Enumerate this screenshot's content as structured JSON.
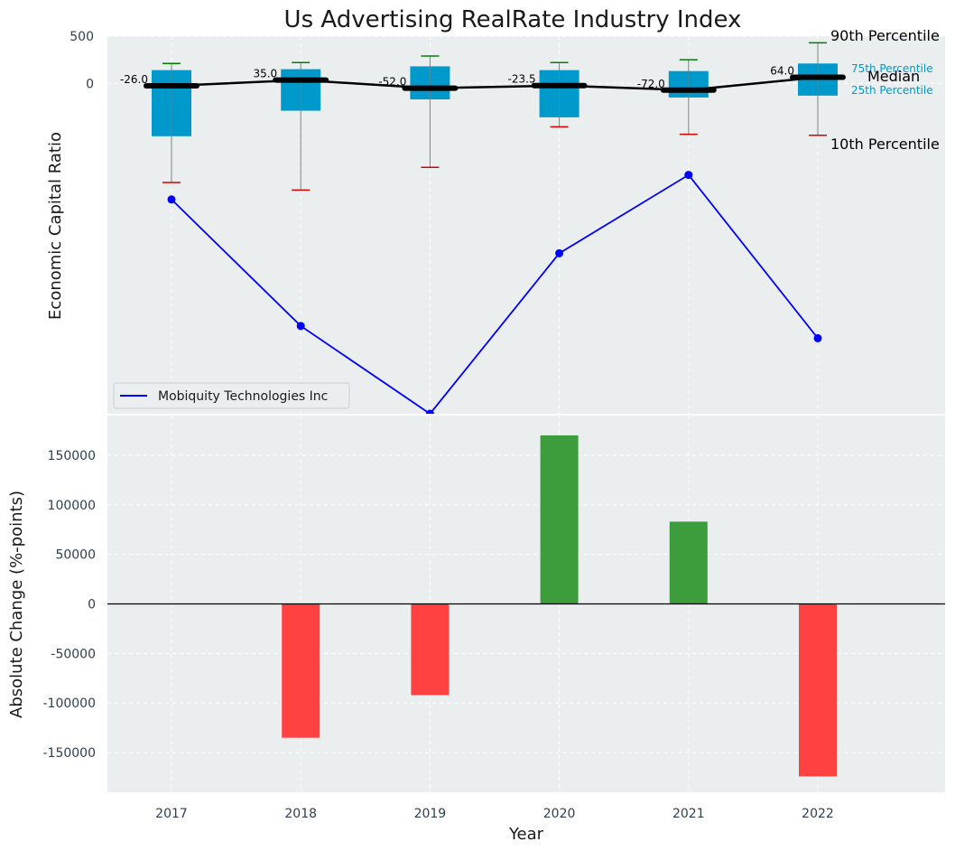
{
  "chart_data": [
    {
      "type": "box-percentile",
      "title": "Us Advertising RealRate Industry Index",
      "ylabel": "Economic Capital Ratio",
      "ylim": [
        -3500,
        500
      ],
      "yticks": [
        500,
        0
      ],
      "categories": [
        "2017",
        "2018",
        "2019",
        "2020",
        "2021",
        "2022"
      ],
      "percentiles": {
        "p10": [
          -1050,
          -1130,
          -890,
          -460,
          -540,
          -550
        ],
        "p25": [
          -560,
          -290,
          -170,
          -360,
          -150,
          -130
        ],
        "median": [
          -26.0,
          35.0,
          -52.0,
          -23.5,
          -72.0,
          64.0
        ],
        "p75": [
          140,
          150,
          180,
          140,
          130,
          210
        ],
        "p90": [
          210,
          220,
          290,
          220,
          250,
          430
        ]
      },
      "median_labels": [
        "-26.0",
        "35.0",
        "-52.0",
        "-23.5",
        "-72.0",
        "64.0"
      ],
      "company_series": {
        "name": "Mobiquity Technologies Inc",
        "values": [
          -1230,
          -2570,
          -3500,
          -1800,
          -970,
          -2700
        ]
      },
      "annotations": {
        "p90": "90th Percentile",
        "p75": "75th Percentile",
        "median": "Median",
        "p25": "25th Percentile",
        "p10": "10th Percentile"
      },
      "legend_position": "bottom-left"
    },
    {
      "type": "bar",
      "xlabel": "Year",
      "ylabel": "Absolute Change (%-points)",
      "ylim": [
        -190000,
        190000
      ],
      "yticks": [
        150000,
        100000,
        50000,
        0,
        -50000,
        -100000,
        -150000
      ],
      "categories": [
        "2017",
        "2018",
        "2019",
        "2020",
        "2021",
        "2022"
      ],
      "values": [
        0,
        -135000,
        -92000,
        170000,
        83000,
        -174000
      ]
    }
  ],
  "colors": {
    "plot_bg": "#eaeeef",
    "box": "#0099cc",
    "median": "#000000",
    "p90_whisker": "#008000",
    "p10_whisker": "#dd0000",
    "company_line": "#0000ff",
    "positive_bar": "#2e962e",
    "negative_bar": "#ff3333",
    "label_color": "#0099cc"
  }
}
